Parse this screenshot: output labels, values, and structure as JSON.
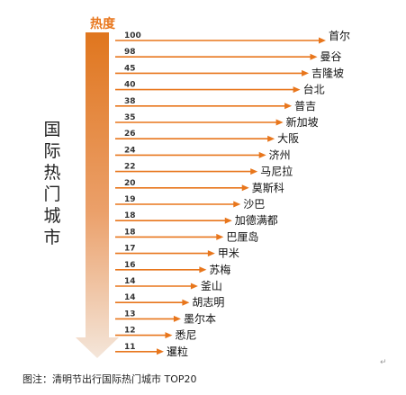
{
  "colors": {
    "accent": "#e8761c",
    "arrow_top": "#e0761e",
    "arrow_bottom": "#f4e6da",
    "text": "#111111"
  },
  "chart_data": {
    "type": "bar",
    "title": "",
    "ylabel": "国际热门城市",
    "value_header": "热度",
    "categories": [
      "首尔",
      "曼谷",
      "吉隆坡",
      "台北",
      "普吉",
      "新加坡",
      "大阪",
      "济州",
      "马尼拉",
      "莫斯科",
      "沙巴",
      "加德满都",
      "巴厘岛",
      "甲米",
      "苏梅",
      "釜山",
      "胡志明",
      "墨尔本",
      "悉尼",
      "暹粒"
    ],
    "values": [
      100,
      98,
      45,
      40,
      38,
      35,
      26,
      24,
      22,
      20,
      19,
      18,
      18,
      17,
      16,
      14,
      14,
      13,
      12,
      11
    ],
    "value_labels": [
      "100",
      "98",
      "45",
      "40",
      "38",
      "35",
      "26",
      "24",
      "22",
      "20",
      "19",
      "18",
      "18",
      "17",
      "16",
      "14",
      "14",
      "13",
      "12",
      "11"
    ],
    "grid": false,
    "legend": "none"
  },
  "caption": "图注：清明节出行国际热门城市 TOP20",
  "caption_mark": "↵"
}
